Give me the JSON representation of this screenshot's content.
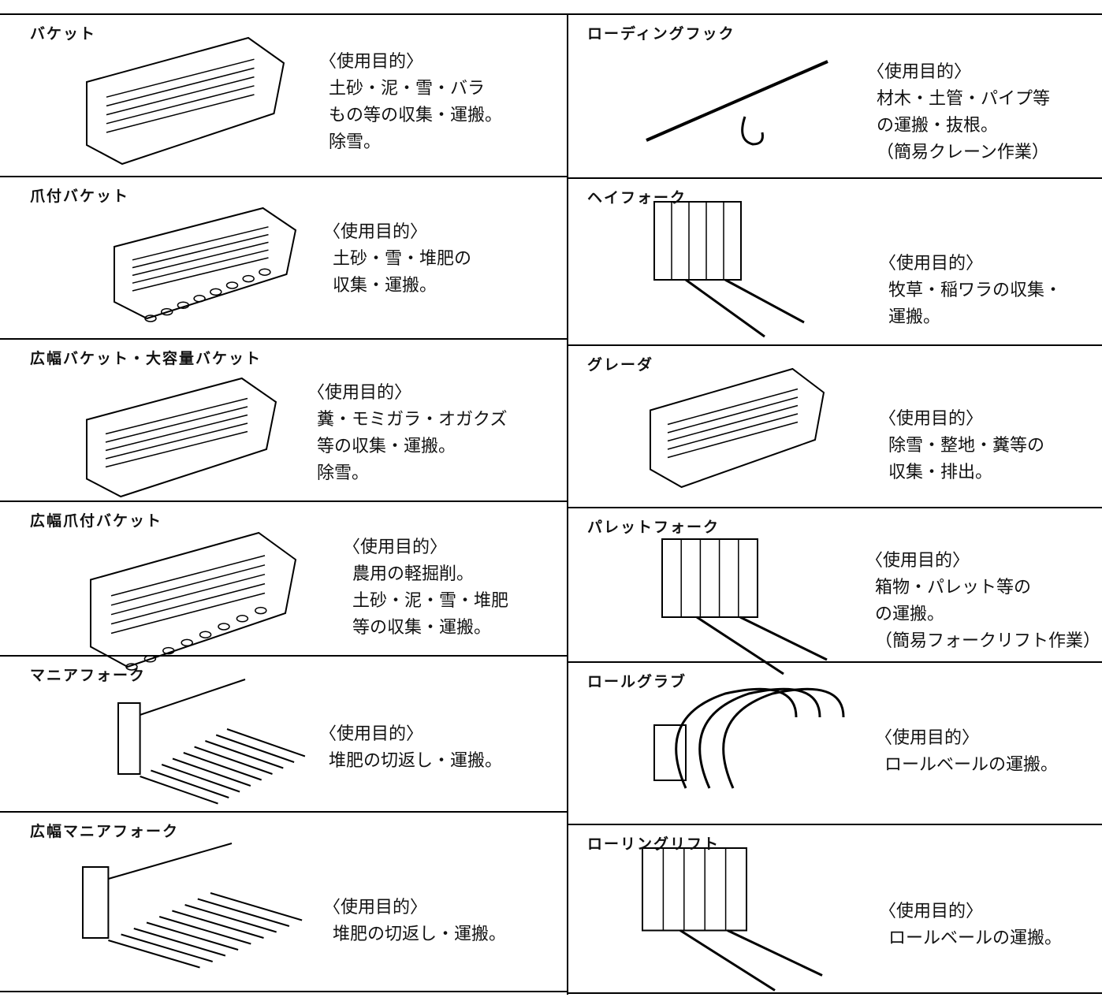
{
  "left": [
    {
      "name": "バケット",
      "purpose_label": "〈使用目的〉",
      "lines": [
        "土砂・泥・雪・バラ",
        "もの等の収集・運搬。",
        "除雪。"
      ]
    },
    {
      "name": "爪付バケット",
      "purpose_label": "〈使用目的〉",
      "lines": [
        "土砂・雪・堆肥の",
        "収集・運搬。"
      ]
    },
    {
      "name": "広幅バケット・大容量バケット",
      "purpose_label": "〈使用目的〉",
      "lines": [
        "糞・モミガラ・オガクズ",
        "等の収集・運搬。",
        "除雪。"
      ]
    },
    {
      "name": "広幅爪付バケット",
      "purpose_label": "〈使用目的〉",
      "lines": [
        "農用の軽掘削。",
        "土砂・泥・雪・堆肥",
        "等の収集・運搬。"
      ]
    },
    {
      "name": "マニアフォーク",
      "purpose_label": "〈使用目的〉",
      "lines": [
        "堆肥の切返し・運搬。"
      ]
    },
    {
      "name": "広幅マニアフォーク",
      "purpose_label": "〈使用目的〉",
      "lines": [
        "堆肥の切返し・運搬。"
      ]
    }
  ],
  "right": [
    {
      "name": "ローディングフック",
      "purpose_label": "〈使用目的〉",
      "lines": [
        "材木・土管・パイプ等",
        "の運搬・抜根。",
        "（簡易クレーン作業）"
      ]
    },
    {
      "name": "ヘイフォーク",
      "purpose_label": "〈使用目的〉",
      "lines": [
        "牧草・稲ワラの収集・",
        "運搬。"
      ]
    },
    {
      "name": "グレーダ",
      "purpose_label": "〈使用目的〉",
      "lines": [
        "除雪・整地・糞等の",
        "収集・排出。"
      ]
    },
    {
      "name": "パレットフォーク",
      "purpose_label": "〈使用目的〉",
      "lines": [
        "箱物・パレット等の",
        "の運搬。",
        "（簡易フォークリフト作業）"
      ]
    },
    {
      "name": "ロールグラブ",
      "purpose_label": "〈使用目的〉",
      "lines": [
        "ロールベールの運搬。"
      ]
    },
    {
      "name": "ローリングリフト",
      "purpose_label": "〈使用目的〉",
      "lines": [
        "ロールベールの運搬。"
      ]
    }
  ]
}
